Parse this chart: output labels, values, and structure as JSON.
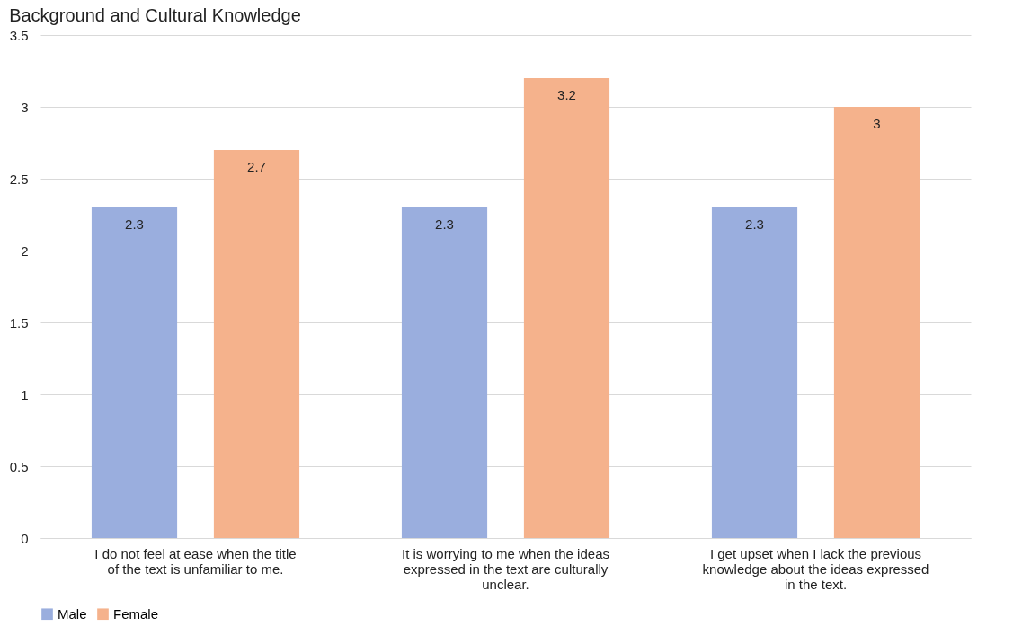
{
  "chart_data": {
    "type": "bar",
    "title": "Background and Cultural Knowledge",
    "categories": [
      "I do not feel at ease when the title of the text is unfamiliar to me.",
      "It is worrying to me when the ideas expressed in the text are culturally unclear.",
      "I get upset when I lack the previous knowledge about the ideas expressed in the text."
    ],
    "series": [
      {
        "name": "Male",
        "color": "#9aaede",
        "values": [
          2.3,
          2.3,
          2.3
        ]
      },
      {
        "name": "Female",
        "color": "#f5b28c",
        "values": [
          2.7,
          3.2,
          3
        ]
      }
    ],
    "ylim": [
      0,
      3.5
    ],
    "yticks": [
      0,
      0.5,
      1,
      1.5,
      2,
      2.5,
      3,
      3.5
    ],
    "grid": "y",
    "legend": "bottom",
    "data_labels": true
  }
}
